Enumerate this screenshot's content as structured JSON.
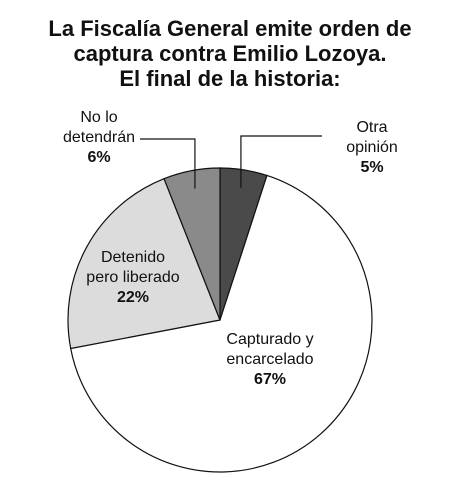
{
  "title_lines": [
    "La Fiscalía General emite orden de",
    "captura contra Emilio Lozoya.",
    "El final de la historia:"
  ],
  "chart_data": {
    "type": "pie",
    "title": "La Fiscalía General emite orden de captura contra Emilio Lozoya. El final de la historia:",
    "start": "top",
    "direction": "clockwise",
    "slices": [
      {
        "label_lines": [
          "Otra",
          "opinión"
        ],
        "value": 5,
        "value_label": "5%",
        "color": "#4a4a4a"
      },
      {
        "label_lines": [
          "Capturado y",
          "encarcelado"
        ],
        "value": 67,
        "value_label": "67%",
        "color": "#ffffff"
      },
      {
        "label_lines": [
          "Detenido",
          "pero liberado"
        ],
        "value": 22,
        "value_label": "22%",
        "color": "#dcdcdc"
      },
      {
        "label_lines": [
          "No lo",
          "detendrán"
        ],
        "value": 6,
        "value_label": "6%",
        "color": "#8a8a8a"
      }
    ]
  }
}
